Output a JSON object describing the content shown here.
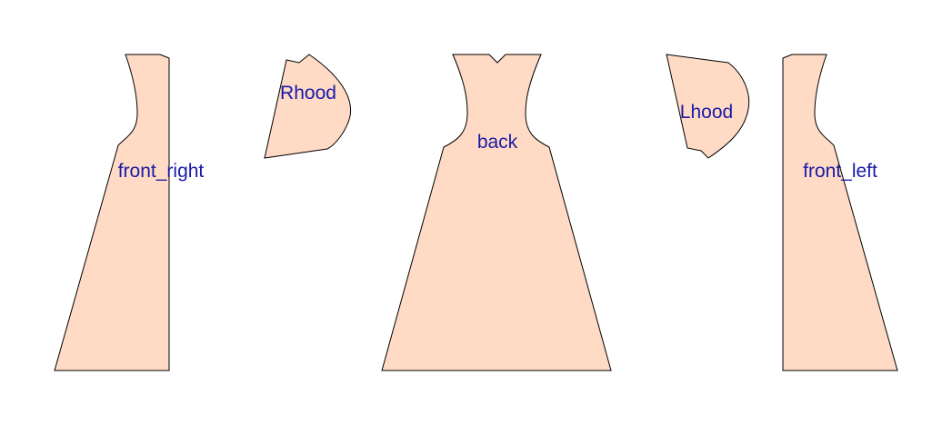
{
  "colors": {
    "background": "#ffffff",
    "panel_fill": "#ffdac4",
    "panel_stroke": "#000000",
    "label_color": "#1a1aa8"
  },
  "panels": [
    {
      "id": "front_right",
      "label": "front_right"
    },
    {
      "id": "Rhood",
      "label": "Rhood"
    },
    {
      "id": "back",
      "label": "back"
    },
    {
      "id": "Lhood",
      "label": "Lhood"
    },
    {
      "id": "front_left",
      "label": "front_left"
    }
  ]
}
